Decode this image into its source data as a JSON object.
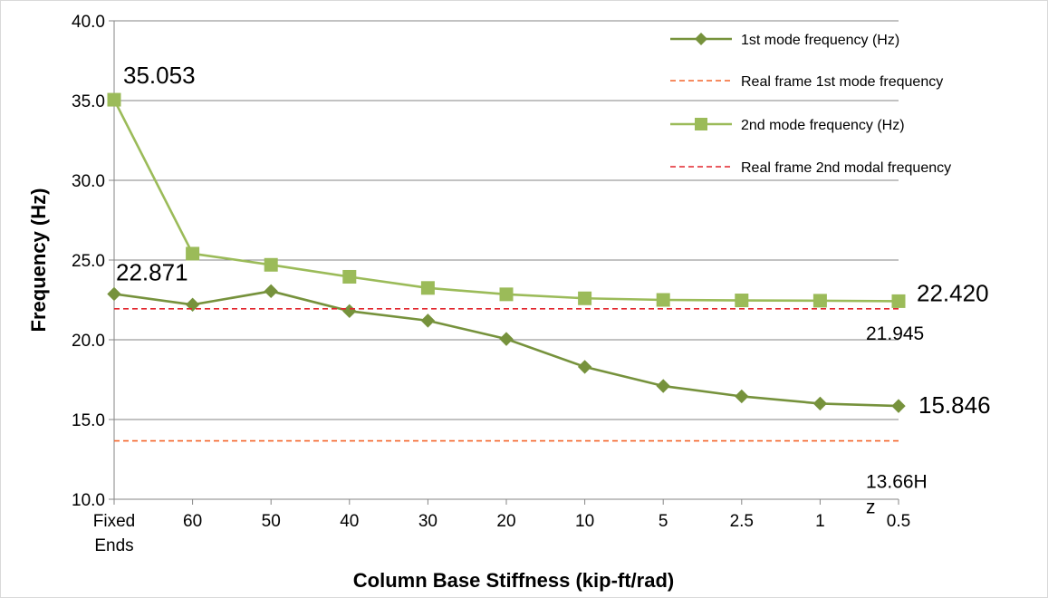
{
  "chart_data": {
    "type": "line",
    "title": "",
    "xlabel": "Column Base Stiffness (kip-ft/rad)",
    "ylabel": "Frequency (Hz)",
    "ylim": [
      10,
      40
    ],
    "yticks": [
      "10.0",
      "15.0",
      "20.0",
      "25.0",
      "30.0",
      "35.0",
      "40.0"
    ],
    "categories": [
      [
        "Fixed",
        "Ends"
      ],
      [
        "60"
      ],
      [
        "50"
      ],
      [
        "40"
      ],
      [
        "30"
      ],
      [
        "20"
      ],
      [
        "10"
      ],
      [
        "5"
      ],
      [
        "2.5"
      ],
      [
        "1"
      ],
      [
        "0.5"
      ]
    ],
    "grid": true,
    "legend_position": "top-right",
    "series": [
      {
        "name": "1st mode frequency (Hz)",
        "marker": "diamond",
        "color": "#76923C",
        "markerColor": "#76923C",
        "values": [
          22.871,
          22.2,
          23.05,
          21.8,
          21.2,
          20.05,
          18.3,
          17.1,
          16.45,
          16.0,
          15.846
        ]
      },
      {
        "name": "Real frame 1st mode frequency",
        "style": "dashed",
        "color": "#F4652B",
        "values": [
          13.66,
          13.66,
          13.66,
          13.66,
          13.66,
          13.66,
          13.66,
          13.66,
          13.66,
          13.66,
          13.66
        ]
      },
      {
        "name": "2nd mode frequency (Hz)",
        "marker": "square",
        "color": "#9BBB59",
        "markerColor": "#9BBB59",
        "values": [
          35.053,
          25.4,
          24.7,
          23.95,
          23.25,
          22.85,
          22.6,
          22.5,
          22.47,
          22.45,
          22.42
        ]
      },
      {
        "name": "Real frame 2nd modal frequency",
        "style": "dashed",
        "color": "#E2252C",
        "values": [
          21.945,
          21.945,
          21.945,
          21.945,
          21.945,
          21.945,
          21.945,
          21.945,
          21.945,
          21.945,
          21.945
        ]
      }
    ],
    "annotations": [
      {
        "text": "35.053",
        "series": 2,
        "index": 0,
        "color": "#000000"
      },
      {
        "text": "22.871",
        "series": 0,
        "index": 0,
        "color": "#000000"
      },
      {
        "text": "22.420",
        "series": 2,
        "index": 10,
        "color": "#000000"
      },
      {
        "text": "15.846",
        "series": 0,
        "index": 10,
        "color": "#000000"
      },
      {
        "text": "21.945",
        "series": 3,
        "index": 10,
        "color": "#C0232A"
      },
      {
        "text": "13.66H",
        "series": 1,
        "index": 10,
        "color": "#4F7CA9"
      },
      {
        "text": "z",
        "series": 1,
        "index": 10,
        "color": "#4F7CA9"
      }
    ]
  }
}
